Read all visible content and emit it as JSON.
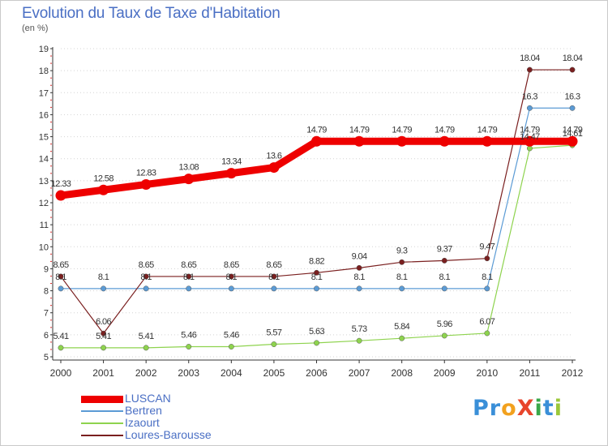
{
  "title": "Evolution du Taux de Taxe d'Habitation",
  "unit_label": "(en %)",
  "logo": {
    "text": "ProXiti",
    "letters": [
      {
        "ch": "P",
        "color": "#3a8fd8"
      },
      {
        "ch": "r",
        "color": "#3a8fd8"
      },
      {
        "ch": "o",
        "color": "#f2a11e"
      },
      {
        "ch": "X",
        "color": "#e8452c"
      },
      {
        "ch": "i",
        "color": "#3aa84a"
      },
      {
        "ch": "t",
        "color": "#3a8fd8"
      },
      {
        "ch": "i",
        "color": "#9bc83a"
      }
    ]
  },
  "chart_data": {
    "type": "line",
    "title": "Evolution du Taux de Taxe d'Habitation",
    "ylabel": "(en %)",
    "xlabel": "",
    "x": [
      "2000",
      "2001",
      "2002",
      "2003",
      "2004",
      "2005",
      "2006",
      "2007",
      "2008",
      "2009",
      "2010",
      "2011",
      "2012"
    ],
    "ylim": [
      5,
      19
    ],
    "yticks": [
      5,
      6,
      7,
      8,
      9,
      10,
      11,
      12,
      13,
      14,
      15,
      16,
      17,
      18,
      19
    ],
    "grid": "horizontal dotted",
    "legend_position": "bottom-left",
    "series": [
      {
        "name": "LUSCAN",
        "color": "#ee0000",
        "width": 9,
        "values": [
          12.33,
          12.58,
          12.83,
          13.08,
          13.34,
          13.6,
          14.79,
          14.79,
          14.79,
          14.79,
          14.79,
          14.79,
          14.79
        ],
        "labels": [
          "12.33",
          "12.58",
          "12.83",
          "13.08",
          "13.34",
          "13.6",
          "14.79",
          "14.79",
          "14.79",
          "14.79",
          "14.79",
          "14.79",
          "14.79"
        ]
      },
      {
        "name": "Bertren",
        "color": "#5b9bd5",
        "width": 1.2,
        "values": [
          8.1,
          8.1,
          8.1,
          8.1,
          8.1,
          8.1,
          8.1,
          8.1,
          8.1,
          8.1,
          8.1,
          16.3,
          16.3
        ],
        "labels": [
          "8.1",
          "8.1",
          "8.1",
          "8.1",
          "8.1",
          "8.1",
          "8.1",
          "8.1",
          "8.1",
          "8.1",
          "8.1",
          "16.3",
          "16.3"
        ]
      },
      {
        "name": "Izaourt",
        "color": "#8ed34e",
        "width": 1.2,
        "values": [
          5.41,
          5.41,
          5.41,
          5.46,
          5.46,
          5.57,
          5.63,
          5.73,
          5.84,
          5.96,
          6.07,
          14.47,
          14.61
        ],
        "labels": [
          "5.41",
          "5.41",
          "5.41",
          "5.46",
          "5.46",
          "5.57",
          "5.63",
          "5.73",
          "5.84",
          "5.96",
          "6.07",
          "14.47",
          "14.61"
        ]
      },
      {
        "name": "Loures-Barousse",
        "color": "#7a1f1f",
        "width": 1.2,
        "values": [
          8.65,
          6.06,
          8.65,
          8.65,
          8.65,
          8.65,
          8.82,
          9.04,
          9.3,
          9.37,
          9.47,
          18.04,
          18.04
        ],
        "labels": [
          "8.65",
          "6.06",
          "8.65",
          "8.65",
          "8.65",
          "8.65",
          "8.82",
          "9.04",
          "9.3",
          "9.37",
          "9.47",
          "18.04",
          "18.04"
        ]
      }
    ]
  }
}
